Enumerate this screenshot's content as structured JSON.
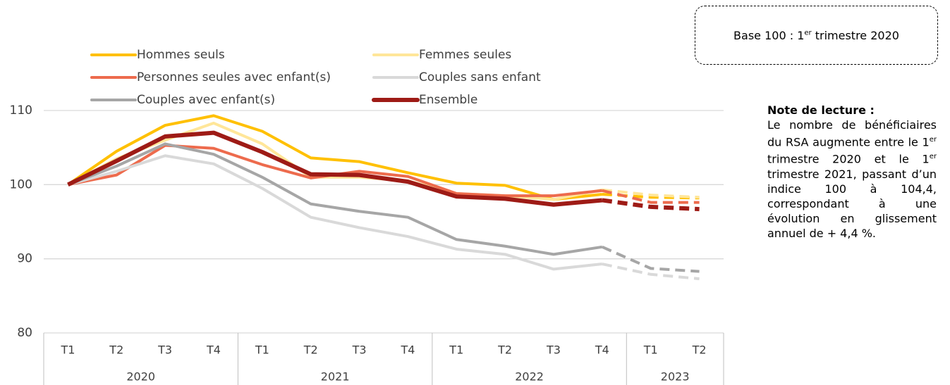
{
  "chart_data": {
    "type": "line",
    "groups": [
      {
        "label": "2020",
        "categories": [
          "T1",
          "T2",
          "T3",
          "T4"
        ]
      },
      {
        "label": "2021",
        "categories": [
          "T1",
          "T2",
          "T3",
          "T4"
        ]
      },
      {
        "label": "2022",
        "categories": [
          "T1",
          "T2",
          "T3",
          "T4"
        ]
      },
      {
        "label": "2023",
        "categories": [
          "T1",
          "T2"
        ]
      }
    ],
    "series": [
      {
        "name": "Hommes seuls",
        "color": "#FFC000",
        "values": [
          100,
          104.5,
          108.0,
          109.3,
          107.2,
          103.6,
          103.1,
          101.6,
          100.2,
          99.9,
          98.0,
          98.7,
          98.3,
          98.2
        ]
      },
      {
        "name": "Femmes seules",
        "color": "#FFE699",
        "values": [
          100,
          103.5,
          106.0,
          108.3,
          105.5,
          101.0,
          101.0,
          100.5,
          98.8,
          98.5,
          98.0,
          99.3,
          98.6,
          98.3
        ]
      },
      {
        "name": "Personnes seules avec enfant(s)",
        "color": "#ED6B4D",
        "values": [
          100,
          101.3,
          105.3,
          104.9,
          102.7,
          100.9,
          101.8,
          101.1,
          98.8,
          98.5,
          98.5,
          99.2,
          97.6,
          97.6
        ]
      },
      {
        "name": "Couples sans enfant",
        "color": "#D9D9D9",
        "values": [
          100,
          101.8,
          103.9,
          102.8,
          99.5,
          95.6,
          94.2,
          93.0,
          91.3,
          90.6,
          88.6,
          89.3,
          87.9,
          87.3
        ]
      },
      {
        "name": "Couples avec enfant(s)",
        "color": "#A6A6A6",
        "values": [
          100,
          102.5,
          105.5,
          104.1,
          101.0,
          97.4,
          96.4,
          95.6,
          92.6,
          91.7,
          90.6,
          91.6,
          88.7,
          88.3
        ]
      },
      {
        "name": "Ensemble",
        "color": "#9E1B16",
        "values": [
          100,
          103.2,
          106.5,
          107.0,
          104.4,
          101.4,
          101.3,
          100.4,
          98.4,
          98.1,
          97.3,
          97.9,
          97.0,
          96.7
        ]
      }
    ],
    "forecast_start": 11,
    "ylim": [
      80,
      110
    ],
    "yticks": [
      80,
      90,
      100,
      110
    ],
    "grid": true,
    "base_note": [
      "Base 100 : 1",
      "er",
      " trimestre 2020"
    ],
    "note": {
      "title": "Note de lecture :",
      "body": [
        "Le nombre de bénéficiaires du RSA augmente entre le 1",
        "er",
        " trimestre 2020 et le 1",
        "er",
        " trimestre 2021, passant d’un indice 100 à 104,4, correspondant à une évolution en glissement annuel de + 4,4 %."
      ]
    }
  }
}
